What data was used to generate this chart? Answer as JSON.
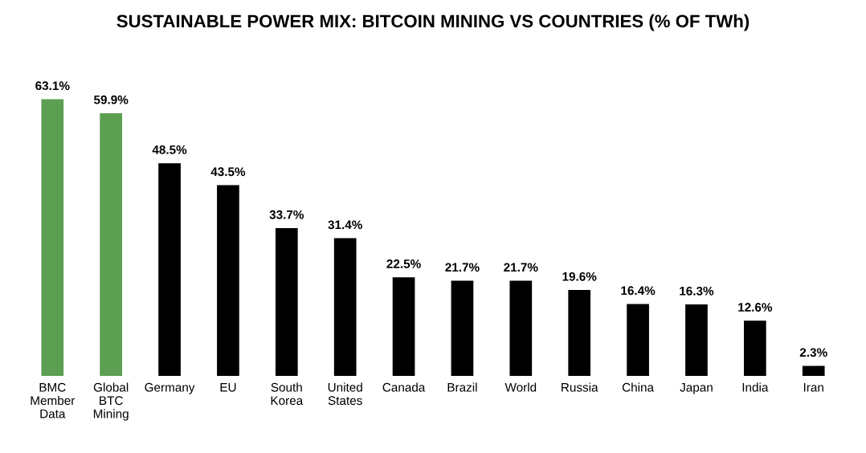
{
  "chart_data": {
    "type": "bar",
    "title": "SUSTAINABLE POWER MIX: BITCOIN MINING VS COUNTRIES (% OF TWh)",
    "categories": [
      "BMC\nMember\nData",
      "Global\nBTC\nMining",
      "Germany",
      "EU",
      "South\nKorea",
      "United\nStates",
      "Canada",
      "Brazil",
      "World",
      "Russia",
      "China",
      "Japan",
      "India",
      "Iran"
    ],
    "values": [
      63.1,
      59.9,
      48.5,
      43.5,
      33.7,
      31.4,
      22.5,
      21.7,
      21.7,
      19.6,
      16.4,
      16.3,
      12.6,
      2.3
    ],
    "value_labels": [
      "63.1%",
      "59.9%",
      "48.5%",
      "43.5%",
      "33.7%",
      "31.4%",
      "22.5%",
      "21.7%",
      "21.7%",
      "19.6%",
      "16.4%",
      "16.3%",
      "12.6%",
      "2.3%"
    ],
    "colors": [
      "#5c9e52",
      "#5c9e52",
      "#000000",
      "#000000",
      "#000000",
      "#000000",
      "#000000",
      "#000000",
      "#000000",
      "#000000",
      "#000000",
      "#000000",
      "#000000",
      "#000000"
    ],
    "grid": false,
    "legend": false
  }
}
